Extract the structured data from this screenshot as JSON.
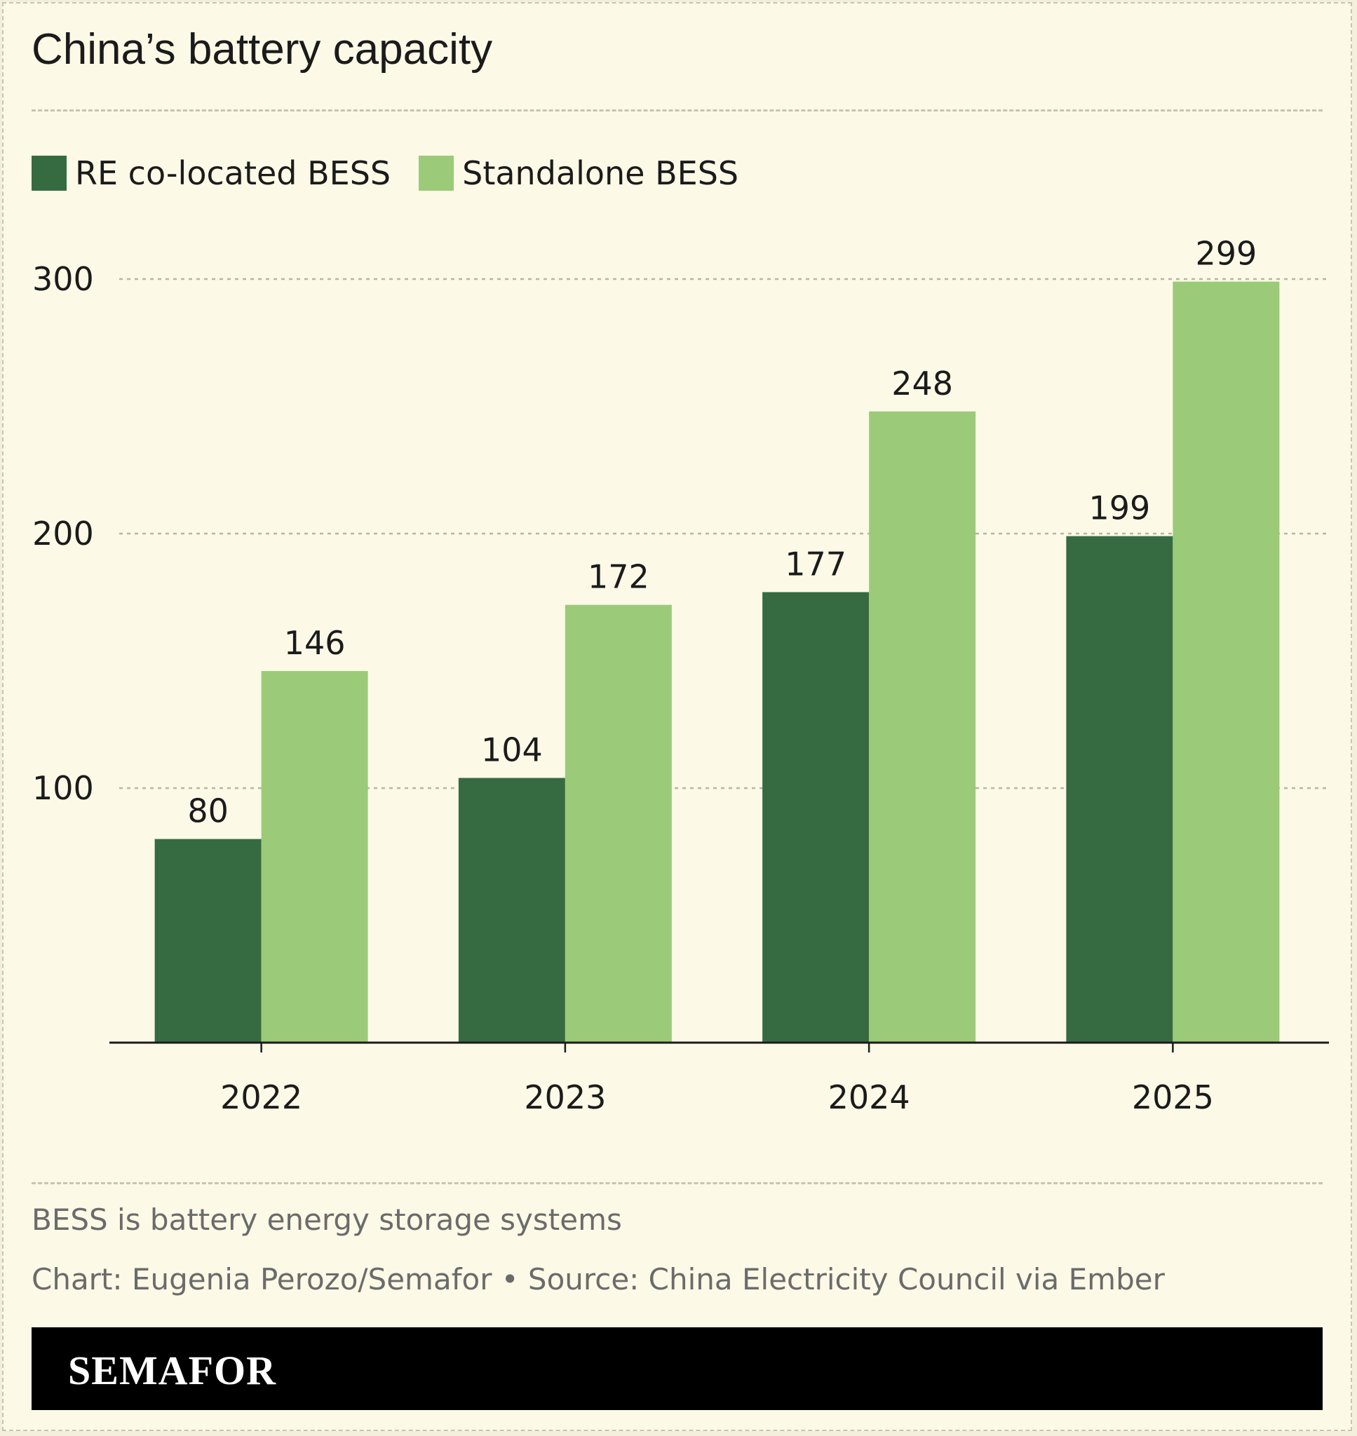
{
  "header": {
    "title": "China’s battery capacity"
  },
  "legend": {
    "items": [
      {
        "label": "RE co-located BESS",
        "color": "#366b41"
      },
      {
        "label": "Standalone BESS",
        "color": "#9bcb78"
      }
    ]
  },
  "chart_data": {
    "type": "bar",
    "title": "China’s battery capacity",
    "categories": [
      "2022",
      "2023",
      "2024",
      "2025"
    ],
    "series": [
      {
        "name": "RE co-located BESS",
        "color": "#366b41",
        "values": [
          80,
          104,
          177,
          199
        ]
      },
      {
        "name": "Standalone BESS",
        "color": "#9bcb78",
        "values": [
          146,
          172,
          248,
          299
        ]
      }
    ],
    "yticks": [
      100,
      200,
      300
    ],
    "ylim": [
      0,
      300
    ],
    "grid": true,
    "legend_position": "top-left",
    "xlabel": "",
    "ylabel": ""
  },
  "notes": {
    "definition": "BESS is battery energy storage systems",
    "credit": "Chart: Eugenia Perozo/Semafor • Source: China Electricity Council via Ember"
  },
  "footer": {
    "logo": "SEMAFOR"
  }
}
